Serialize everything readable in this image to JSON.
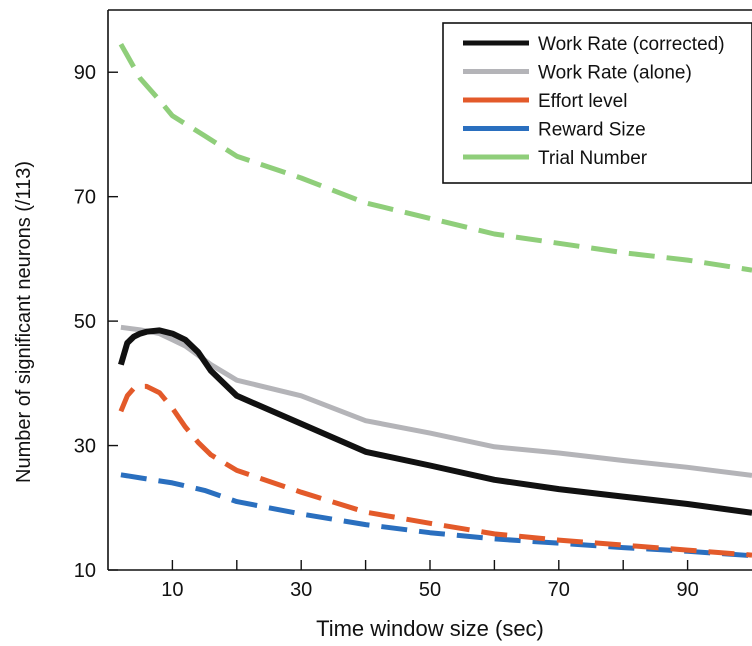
{
  "chart_data": {
    "type": "line",
    "title": "",
    "xlabel": "Time window size (sec)",
    "ylabel": "Number of significant neurons (/113)",
    "xlim": [
      0,
      100
    ],
    "ylim": [
      10,
      100
    ],
    "xticks_labeled": [
      10,
      30,
      50,
      70,
      90
    ],
    "xticks_minor": [
      20,
      40,
      60,
      80
    ],
    "yticks": [
      10,
      30,
      50,
      70,
      90
    ],
    "grid": false,
    "legend_position": "top-right",
    "series": [
      {
        "name": "Work Rate (corrected)",
        "color": "#111111",
        "style": "solid",
        "x": [
          2,
          3,
          4,
          5,
          6,
          8,
          10,
          12,
          14,
          16,
          20,
          30,
          40,
          50,
          60,
          70,
          80,
          90,
          100
        ],
        "y": [
          43,
          46.5,
          47.5,
          48,
          48.3,
          48.5,
          48,
          47,
          45,
          42,
          38,
          33.5,
          29,
          26.8,
          24.5,
          23,
          21.8,
          20.6,
          19.2
        ]
      },
      {
        "name": "Work Rate (alone)",
        "color": "#b4b4b8",
        "style": "solid",
        "x": [
          2,
          5,
          8,
          10,
          12,
          14,
          16,
          20,
          30,
          40,
          50,
          60,
          70,
          80,
          90,
          100
        ],
        "y": [
          49,
          48.6,
          48,
          47,
          46,
          44.5,
          43,
          40.5,
          38,
          34,
          32,
          29.8,
          28.8,
          27.6,
          26.5,
          25.2
        ]
      },
      {
        "name": "Effort level",
        "color": "#e35a2a",
        "style": "dashed",
        "x": [
          2,
          3,
          4,
          5,
          6,
          8,
          10,
          12,
          14,
          16,
          20,
          30,
          40,
          50,
          60,
          70,
          80,
          90,
          100
        ],
        "y": [
          35.5,
          38,
          39.2,
          39.5,
          39.5,
          38.5,
          36,
          33,
          30.5,
          28.5,
          26,
          22.5,
          19.3,
          17.5,
          15.8,
          14.8,
          14,
          13.2,
          12.4
        ]
      },
      {
        "name": "Reward Size",
        "color": "#2a6fbf",
        "style": "dashed",
        "x": [
          2,
          5,
          10,
          15,
          20,
          30,
          40,
          50,
          60,
          70,
          80,
          90,
          100
        ],
        "y": [
          25.3,
          24.8,
          24,
          22.8,
          21,
          19,
          17.3,
          16,
          15,
          14.3,
          13.6,
          13,
          12.3
        ]
      },
      {
        "name": "Trial Number",
        "color": "#8fce7a",
        "style": "dashed",
        "x": [
          2,
          5,
          8,
          10,
          15,
          20,
          30,
          40,
          50,
          60,
          70,
          80,
          90,
          100
        ],
        "y": [
          94.5,
          89,
          85.5,
          83,
          79.8,
          76.5,
          73,
          69,
          66.5,
          64,
          62.5,
          61,
          59.8,
          58.2
        ]
      }
    ]
  }
}
